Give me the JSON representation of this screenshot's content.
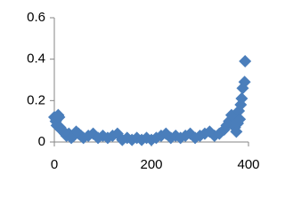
{
  "chart_data": {
    "type": "scatter",
    "color": "#4a7ebb",
    "x": [
      0,
      3,
      5,
      8,
      10,
      12,
      15,
      18,
      22,
      25,
      30,
      35,
      40,
      45,
      50,
      55,
      60,
      70,
      80,
      90,
      100,
      110,
      120,
      130,
      140,
      150,
      160,
      170,
      180,
      190,
      200,
      210,
      220,
      230,
      240,
      250,
      260,
      270,
      280,
      290,
      300,
      310,
      320,
      330,
      340,
      350,
      355,
      360,
      365,
      370,
      372,
      375,
      378,
      380,
      382,
      384,
      386,
      388,
      392,
      393
    ],
    "y": [
      0.12,
      0.1,
      0.08,
      0.13,
      0.12,
      0.07,
      0.06,
      0.05,
      0.04,
      0.03,
      0.04,
      0.02,
      0.03,
      0.05,
      0.04,
      0.03,
      0.02,
      0.03,
      0.04,
      0.02,
      0.03,
      0.02,
      0.03,
      0.04,
      0.01,
      0.02,
      0.01,
      0.02,
      0.01,
      0.02,
      0.01,
      0.02,
      0.03,
      0.04,
      0.02,
      0.03,
      0.02,
      0.03,
      0.04,
      0.02,
      0.03,
      0.04,
      0.05,
      0.03,
      0.04,
      0.06,
      0.08,
      0.1,
      0.13,
      0.12,
      0.07,
      0.05,
      0.09,
      0.15,
      0.11,
      0.18,
      0.21,
      0.26,
      0.29,
      0.39
    ],
    "xlim": [
      0,
      400
    ],
    "xticks": [
      0,
      200,
      400
    ],
    "ylim": [
      0,
      0.6
    ],
    "yticks": [
      0,
      0.2,
      0.4,
      0.6
    ],
    "grid": false
  }
}
